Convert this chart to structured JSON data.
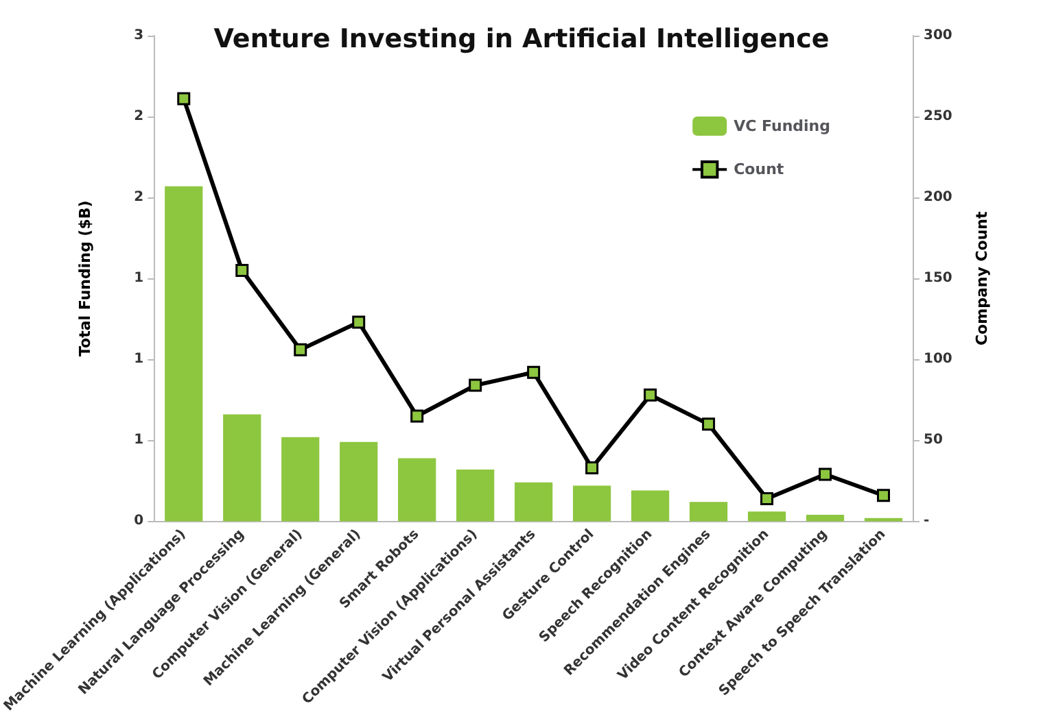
{
  "chart_data": {
    "type": "bar",
    "title": "Venture Investing in Artificial Intelligence",
    "ylabel": "Total Funding ($B)",
    "y2label": "Company Count",
    "categories": [
      "Machine Learning (Applications)",
      "Natural Language Processing",
      "Computer Vision (General)",
      "Machine Learning (General)",
      "Smart Robots",
      "Computer Vision (Applications)",
      "Virtual Personal Assistants",
      "Gesture Control",
      "Speech Recognition",
      "Recommendation Engines",
      "Video Content Recognition",
      "Context Aware Computing",
      "Speech to Speech Translation"
    ],
    "series": [
      {
        "name": "VC Funding",
        "color": "#8dc63f",
        "values": [
          2.07,
          0.66,
          0.52,
          0.49,
          0.39,
          0.32,
          0.24,
          0.22,
          0.19,
          0.12,
          0.06,
          0.04,
          0.02
        ]
      },
      {
        "name": "Count",
        "type": "line",
        "axis": "y2",
        "color": "#000000",
        "marker": "square",
        "values": [
          261,
          155,
          106,
          123,
          65,
          84,
          92,
          33,
          78,
          60,
          14,
          29,
          16
        ]
      }
    ],
    "ylim": [
      0,
      3
    ],
    "yticks": [
      0,
      {
        "value": 0.5,
        "label": "1"
      },
      1,
      {
        "value": 1.5,
        "label": "1"
      },
      2,
      {
        "value": 2.5,
        "label": "2"
      },
      3
    ],
    "y2lim": [
      0,
      300
    ],
    "y2ticks": [
      {
        "value": 0,
        "label": "-"
      },
      50,
      100,
      150,
      200,
      250,
      300
    ],
    "grid": false,
    "legend": "top right"
  }
}
